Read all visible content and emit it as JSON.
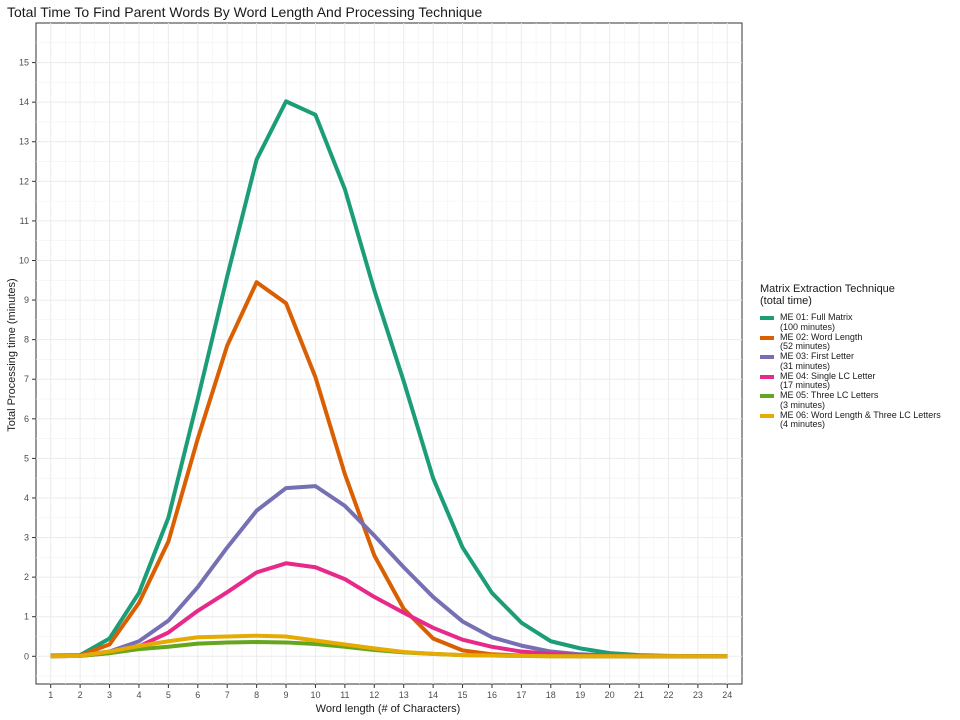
{
  "chart_data": {
    "type": "line",
    "title": "Total Time To Find Parent Words By Word Length And Processing Technique",
    "xlabel": "Word length (# of Characters)",
    "ylabel": "Total Processing time (minutes)",
    "x": [
      1,
      2,
      3,
      4,
      5,
      6,
      7,
      8,
      9,
      10,
      11,
      12,
      13,
      14,
      15,
      16,
      17,
      18,
      19,
      20,
      21,
      22,
      23,
      24
    ],
    "xlim": [
      0.5,
      24.5
    ],
    "ylim": [
      -0.7,
      16
    ],
    "yticks": [
      0,
      1,
      2,
      3,
      4,
      5,
      6,
      7,
      8,
      9,
      10,
      11,
      12,
      13,
      14,
      15
    ],
    "grid": true,
    "legend_position": "right",
    "legend_title": "Matrix Extraction Technique\n(total time)",
    "series": [
      {
        "name": "ME 01: Full Matrix\n(100 minutes)",
        "color": "#1b9e77",
        "values": [
          0.02,
          0.03,
          0.45,
          1.6,
          3.5,
          6.5,
          9.6,
          12.55,
          14.02,
          13.68,
          11.8,
          9.25,
          6.95,
          4.5,
          2.75,
          1.6,
          0.85,
          0.38,
          0.2,
          0.08,
          0.03,
          0.01,
          0.0,
          0.0
        ]
      },
      {
        "name": "ME 02: Word Length\n(52 minutes)",
        "color": "#d95f02",
        "values": [
          0.01,
          0.02,
          0.3,
          1.35,
          2.9,
          5.5,
          7.85,
          9.45,
          8.92,
          7.05,
          4.6,
          2.55,
          1.2,
          0.45,
          0.15,
          0.05,
          0.02,
          0.01,
          0.0,
          0.0,
          0.0,
          0.0,
          0.0,
          0.0
        ]
      },
      {
        "name": "ME 03: First Letter\n(31 minutes)",
        "color": "#7570b3",
        "values": [
          0.01,
          0.02,
          0.12,
          0.38,
          0.9,
          1.75,
          2.75,
          3.68,
          4.25,
          4.3,
          3.8,
          3.05,
          2.25,
          1.5,
          0.88,
          0.48,
          0.27,
          0.12,
          0.05,
          0.02,
          0.01,
          0.0,
          0.0,
          0.0
        ]
      },
      {
        "name": "ME 04: Single LC Letter\n(17 minutes)",
        "color": "#e7298a",
        "values": [
          0.0,
          0.01,
          0.08,
          0.25,
          0.6,
          1.15,
          1.62,
          2.12,
          2.35,
          2.25,
          1.95,
          1.5,
          1.1,
          0.72,
          0.42,
          0.24,
          0.12,
          0.06,
          0.03,
          0.01,
          0.0,
          0.0,
          0.0,
          0.0
        ]
      },
      {
        "name": "ME 05: Three LC Letters\n(3 minutes)",
        "color": "#66a61e",
        "values": [
          0.0,
          0.01,
          0.08,
          0.18,
          0.24,
          0.32,
          0.35,
          0.36,
          0.35,
          0.31,
          0.24,
          0.16,
          0.1,
          0.06,
          0.03,
          0.02,
          0.01,
          0.0,
          0.0,
          0.0,
          0.0,
          0.0,
          0.0,
          0.0
        ]
      },
      {
        "name": "ME 06: Word Length & Three LC Letters\n(4 minutes)",
        "color": "#e6ab02",
        "values": [
          0.0,
          0.01,
          0.12,
          0.26,
          0.38,
          0.48,
          0.5,
          0.52,
          0.5,
          0.4,
          0.3,
          0.2,
          0.11,
          0.06,
          0.03,
          0.02,
          0.01,
          0.0,
          0.0,
          0.0,
          0.0,
          0.0,
          0.0,
          0.0
        ]
      }
    ]
  }
}
